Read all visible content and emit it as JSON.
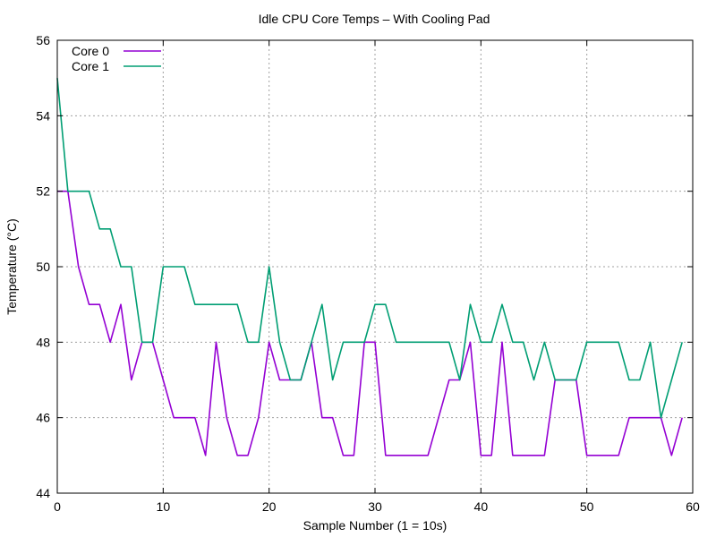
{
  "chart_data": {
    "type": "line",
    "title": "Idle CPU Core Temps – With Cooling Pad",
    "xlabel": "Sample Number (1 = 10s)",
    "ylabel": "Temperature (°C)",
    "xlim": [
      0,
      60
    ],
    "ylim": [
      44,
      56
    ],
    "xticks": [
      "0",
      "10",
      "20",
      "30",
      "40",
      "50",
      "60"
    ],
    "yticks": [
      "44",
      "46",
      "48",
      "50",
      "52",
      "54",
      "56"
    ],
    "grid": true,
    "legend_position": "top-left",
    "x": [
      0,
      1,
      2,
      3,
      4,
      5,
      6,
      7,
      8,
      9,
      10,
      11,
      12,
      13,
      14,
      15,
      16,
      17,
      18,
      19,
      20,
      21,
      22,
      23,
      24,
      25,
      26,
      27,
      28,
      29,
      30,
      31,
      32,
      33,
      34,
      35,
      36,
      37,
      38,
      39,
      40,
      41,
      42,
      43,
      44,
      45,
      46,
      47,
      48,
      49,
      50,
      51,
      52,
      53,
      54,
      55,
      56,
      57,
      58,
      59
    ],
    "series": [
      {
        "name": "Core 0",
        "color": "#9400d3",
        "values": [
          52,
          52,
          50,
          49,
          49,
          48,
          49,
          47,
          48,
          48,
          47,
          46,
          46,
          46,
          45,
          48,
          46,
          45,
          45,
          46,
          48,
          47,
          47,
          47,
          48,
          46,
          46,
          45,
          45,
          48,
          48,
          45,
          45,
          45,
          45,
          45,
          46,
          47,
          47,
          48,
          45,
          45,
          48,
          45,
          45,
          45,
          45,
          47,
          47,
          47,
          45,
          45,
          45,
          45,
          46,
          46,
          46,
          46,
          45,
          46
        ]
      },
      {
        "name": "Core 1",
        "color": "#009e73",
        "values": [
          55,
          52,
          52,
          52,
          51,
          51,
          50,
          50,
          48,
          48,
          50,
          50,
          50,
          49,
          49,
          49,
          49,
          49,
          48,
          48,
          50,
          48,
          47,
          47,
          48,
          49,
          47,
          48,
          48,
          48,
          49,
          49,
          48,
          48,
          48,
          48,
          48,
          48,
          47,
          49,
          48,
          48,
          49,
          48,
          48,
          47,
          48,
          47,
          47,
          47,
          48,
          48,
          48,
          48,
          47,
          47,
          48,
          46,
          47,
          48
        ]
      }
    ]
  }
}
